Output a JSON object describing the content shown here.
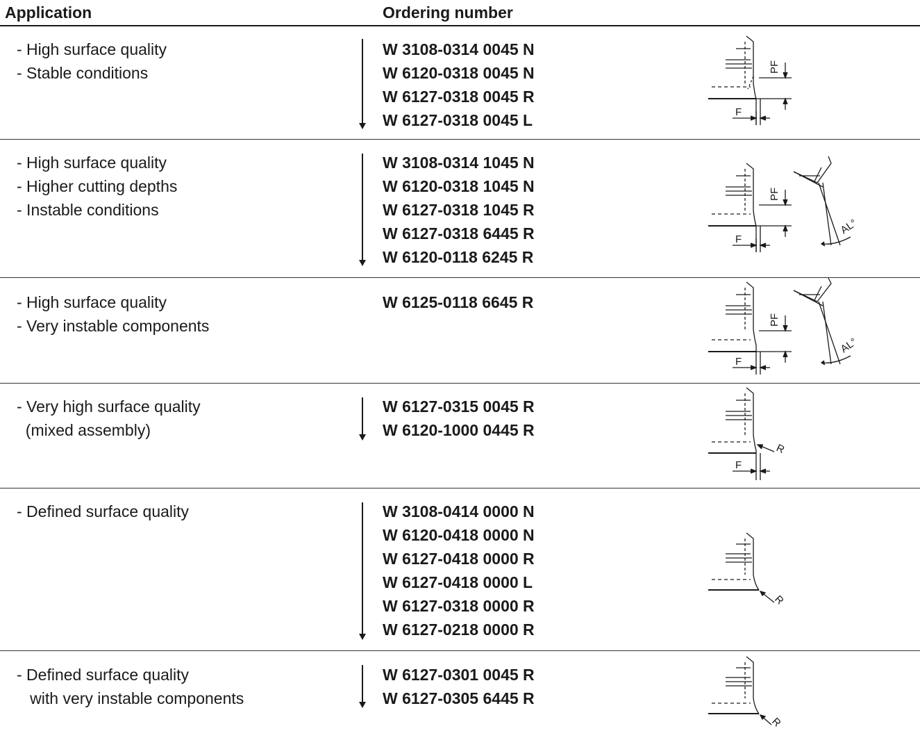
{
  "header": {
    "application": "Application",
    "ordering_number": "Ordering number"
  },
  "rows": [
    {
      "application": [
        "- High surface quality",
        "- Stable conditions"
      ],
      "numbers": [
        "W 3108-0314 0045 N",
        "W 6120-0318 0045 N",
        "W 6127-0318 0045 R",
        "W 6127-0318 0045 L"
      ],
      "labels": [
        "PF",
        "F"
      ]
    },
    {
      "application": [
        "- High surface quality",
        "- Higher cutting depths",
        "- Instable conditions"
      ],
      "numbers": [
        "W 3108-0314 1045 N",
        "W 6120-0318 1045 N",
        "W 6127-0318 1045 R",
        "W 6127-0318 6445 R",
        "W 6120-0118 6245 R"
      ],
      "labels": [
        "PF",
        "F",
        "AL°"
      ]
    },
    {
      "application": [
        "- High surface quality",
        "- Very instable components"
      ],
      "numbers": [
        "W 6125-0118 6645 R"
      ],
      "labels": [
        "PF",
        "F",
        "AL°"
      ]
    },
    {
      "application": [
        "- Very high surface quality",
        "  (mixed assembly)"
      ],
      "numbers": [
        "W 6127-0315 0045 R",
        "W 6120-1000 0445 R"
      ],
      "labels": [
        "R",
        "F"
      ]
    },
    {
      "application": [
        "- Defined surface quality"
      ],
      "numbers": [
        "W 3108-0414 0000 N",
        "W 6120-0418 0000 N",
        "W 6127-0418 0000 R",
        "W 6127-0418 0000 L",
        "W 6127-0318 0000 R",
        "W 6127-0218 0000 R"
      ],
      "labels": [
        "R"
      ]
    },
    {
      "application": [
        "- Defined surface quality",
        "   with very instable components"
      ],
      "numbers": [
        "W 6127-0301 0045 R",
        "W 6127-0305 6445 R"
      ],
      "labels": [
        "R"
      ]
    }
  ]
}
